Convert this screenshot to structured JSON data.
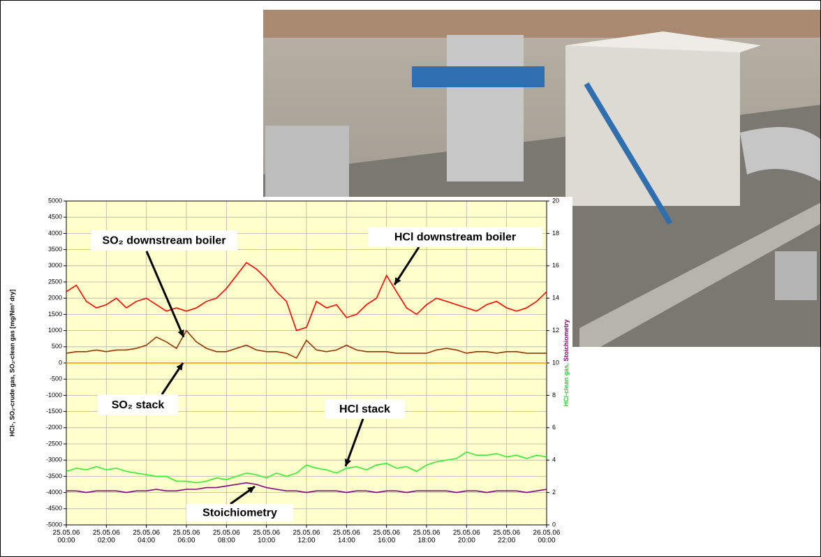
{
  "chart_data": {
    "type": "line",
    "x": [
      0,
      0.5,
      1,
      1.5,
      2,
      2.5,
      3,
      3.5,
      4,
      4.5,
      5,
      5.5,
      6,
      6.5,
      7,
      7.5,
      8,
      8.5,
      9,
      9.5,
      10,
      10.5,
      11,
      11.5,
      12,
      12.5,
      13,
      13.5,
      14,
      14.5,
      15,
      15.5,
      16,
      16.5,
      17,
      17.5,
      18,
      18.5,
      19,
      19.5,
      20,
      20.5,
      21,
      21.5,
      22,
      22.5,
      23,
      23.5,
      24
    ],
    "xlim": [
      0,
      24
    ],
    "xticks": [
      {
        "value": 0,
        "label": "25.05.06 00:00"
      },
      {
        "value": 2,
        "label": "25.05.06 02:00"
      },
      {
        "value": 4,
        "label": "25.05.06 04:00"
      },
      {
        "value": 6,
        "label": "25.05.06 06:00"
      },
      {
        "value": 8,
        "label": "25.05.06 08:00"
      },
      {
        "value": 10,
        "label": "25.05.06 10:00"
      },
      {
        "value": 12,
        "label": "25.05.06 12:00"
      },
      {
        "value": 14,
        "label": "25.05.06 14:00"
      },
      {
        "value": 16,
        "label": "25.05.06 16:00"
      },
      {
        "value": 18,
        "label": "25.05.06 18:00"
      },
      {
        "value": 20,
        "label": "25.05.06 20:00"
      },
      {
        "value": 22,
        "label": "25.05.06 22:00"
      },
      {
        "value": 24,
        "label": "26.05.06 00:00"
      }
    ],
    "ylabel": "HCl-, SO₂-crude gas, SO₂-clean gas [mg/Nm³ dry]",
    "y2label": [
      "HCl-clean gas,",
      "Stoichiometry"
    ],
    "ylim": [
      -5000,
      5000
    ],
    "yticks": [
      -5000,
      -4500,
      -4000,
      -3500,
      -3000,
      -2500,
      -2000,
      -1500,
      -1000,
      -500,
      0,
      500,
      1000,
      1500,
      2000,
      2500,
      3000,
      3500,
      4000,
      4500,
      5000
    ],
    "y2lim": [
      0,
      20
    ],
    "y2ticks": [
      0,
      2,
      4,
      6,
      8,
      10,
      12,
      14,
      16,
      18,
      20
    ],
    "grid": true,
    "series": [
      {
        "name": "HCl downstream boiler",
        "color": "#ff0000",
        "values": [
          2200,
          2400,
          1900,
          1700,
          1800,
          2000,
          1700,
          1900,
          2000,
          1800,
          1600,
          1700,
          1600,
          1700,
          1900,
          2000,
          2300,
          2700,
          3100,
          2900,
          2600,
          2200,
          1900,
          1000,
          1100,
          1900,
          1700,
          1800,
          1400,
          1500,
          1800,
          2000,
          2700,
          2200,
          1700,
          1500,
          1800,
          2000,
          1900,
          1800,
          1700,
          1600,
          1800,
          1900,
          1700,
          1600,
          1700,
          1900,
          2200
        ]
      },
      {
        "name": "SO₂ downstream boiler",
        "color": "#993300",
        "values": [
          300,
          350,
          350,
          400,
          350,
          400,
          400,
          450,
          550,
          800,
          650,
          450,
          1000,
          650,
          450,
          350,
          350,
          450,
          550,
          400,
          350,
          350,
          300,
          150,
          700,
          400,
          350,
          400,
          550,
          400,
          350,
          350,
          350,
          300,
          300,
          300,
          300,
          400,
          450,
          400,
          300,
          350,
          350,
          300,
          350,
          350,
          300,
          300,
          300
        ]
      },
      {
        "name": "SO₂ stack",
        "color": "#ff9900",
        "values": [
          0,
          0,
          0,
          0,
          0,
          0,
          0,
          0,
          0,
          0,
          0,
          0,
          0,
          0,
          0,
          0,
          0,
          0,
          0,
          0,
          0,
          0,
          0,
          0,
          0,
          0,
          0,
          0,
          0,
          0,
          0,
          0,
          0,
          0,
          0,
          0,
          0,
          0,
          0,
          0,
          0,
          0,
          0,
          0,
          0,
          0,
          0,
          0,
          0
        ]
      },
      {
        "name": "HCl stack",
        "color": "#33ee33",
        "axis": "y2",
        "values": [
          3.3,
          3.5,
          3.4,
          3.6,
          3.4,
          3.5,
          3.3,
          3.2,
          3.1,
          3.0,
          3.0,
          2.7,
          2.7,
          2.6,
          2.7,
          2.9,
          2.8,
          3.0,
          3.2,
          3.1,
          2.9,
          3.2,
          3.0,
          3.2,
          3.7,
          3.5,
          3.4,
          3.2,
          3.5,
          3.6,
          3.4,
          3.7,
          3.8,
          3.5,
          3.6,
          3.3,
          3.7,
          3.9,
          4.0,
          4.1,
          4.5,
          4.3,
          4.3,
          4.4,
          4.2,
          4.3,
          4.1,
          4.3,
          4.2
        ]
      },
      {
        "name": "Stoichiometry",
        "color": "#800080",
        "axis": "y2",
        "values": [
          2.1,
          2.1,
          2.0,
          2.1,
          2.1,
          2.1,
          2.0,
          2.1,
          2.1,
          2.2,
          2.1,
          2.1,
          2.2,
          2.2,
          2.3,
          2.3,
          2.4,
          2.5,
          2.6,
          2.5,
          2.3,
          2.2,
          2.1,
          2.1,
          2.0,
          2.1,
          2.1,
          2.1,
          2.0,
          2.1,
          2.1,
          2.0,
          2.1,
          2.1,
          2.0,
          2.1,
          2.1,
          2.1,
          2.1,
          2.0,
          2.1,
          2.1,
          2.0,
          2.1,
          2.1,
          2.1,
          2.0,
          2.1,
          2.2
        ]
      }
    ]
  }
}
